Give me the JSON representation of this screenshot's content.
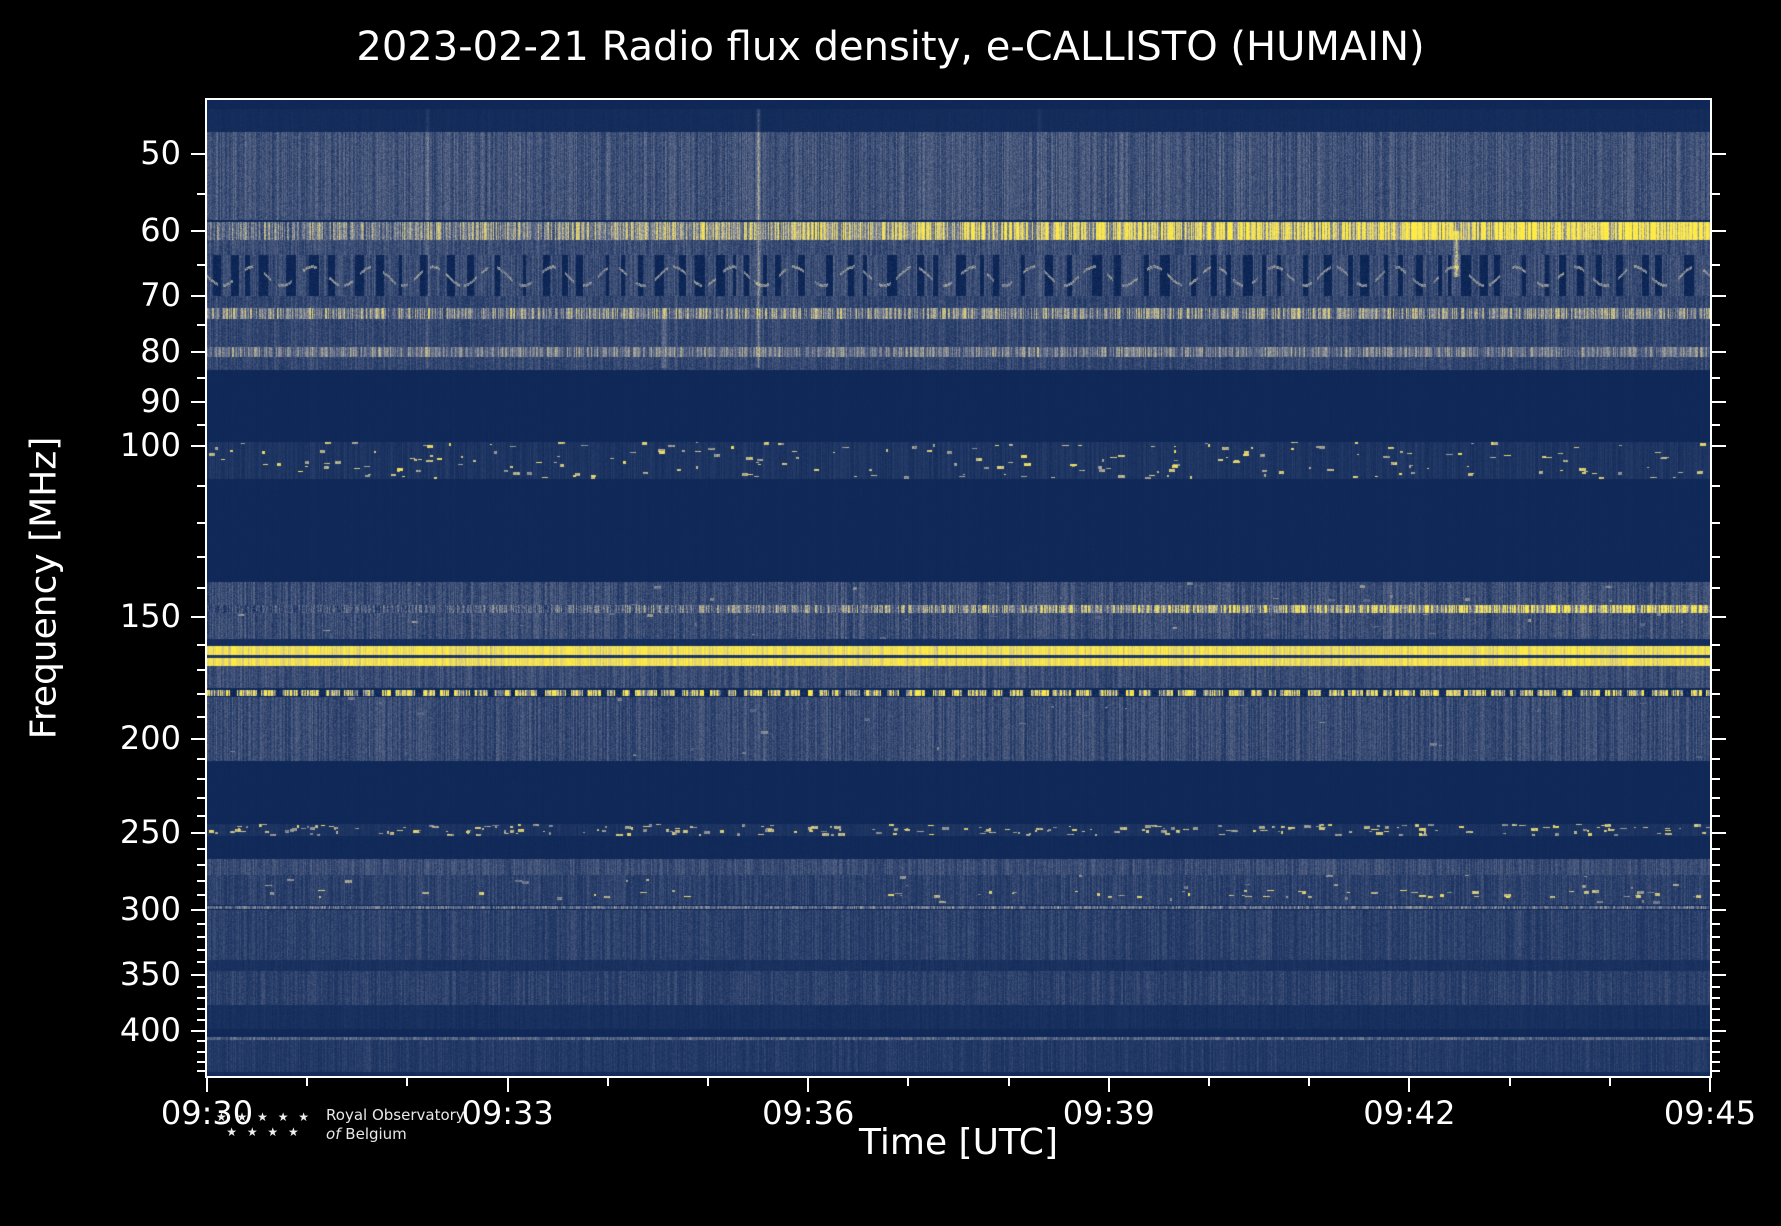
{
  "title": "2023-02-21 Radio flux density, e-CALLISTO (HUMAIN)",
  "chart_data": {
    "type": "heatmap",
    "title": "2023-02-21 Radio flux density, e-CALLISTO (HUMAIN)",
    "date": "2023-02-21",
    "instrument": "e-CALLISTO",
    "station": "HUMAIN",
    "xlabel": "Time [UTC]",
    "ylabel": "Frequency [MHz]",
    "x_span_min": 15,
    "x_major_step_min": 3,
    "x_ticks": [
      "09:30",
      "09:33",
      "09:36",
      "09:39",
      "09:42",
      "09:45"
    ],
    "y_scale": "log",
    "y_axis_inverted": true,
    "y_range_mhz": [
      44,
      445
    ],
    "y_ticks": [
      50,
      60,
      70,
      80,
      90,
      100,
      150,
      200,
      250,
      300,
      350,
      400
    ],
    "y_minor_ticks": [
      55,
      65,
      75,
      85,
      95,
      110,
      120,
      130,
      140,
      160,
      170,
      180,
      190,
      210,
      220,
      230,
      240,
      260,
      270,
      280,
      290,
      310,
      320,
      330,
      340,
      360,
      370,
      380,
      390,
      410,
      420,
      430,
      440
    ],
    "value_meaning": "relative radio flux density; dark navy = low, blue-gray = noise, yellow = strong emission",
    "colormap": [
      [
        0.0,
        [
          8,
          34,
          82
        ]
      ],
      [
        0.22,
        [
          38,
          60,
          104
        ]
      ],
      [
        0.45,
        [
          96,
          108,
          138
        ]
      ],
      [
        0.62,
        [
          150,
          152,
          152
        ]
      ],
      [
        0.78,
        [
          214,
          202,
          128
        ]
      ],
      [
        1.0,
        [
          255,
          236,
          66
        ]
      ]
    ],
    "bands": [
      {
        "kind": "noise",
        "f0": 45,
        "f1": 47.5,
        "level": 0.09,
        "var": 0.04,
        "colvar": 0.1,
        "desc": "dark strip at top edge"
      },
      {
        "kind": "noise",
        "f0": 47.5,
        "f1": 58.5,
        "level": 0.33,
        "var": 0.17,
        "colvar": 0.28,
        "desc": "broadband noise 48-58 MHz"
      },
      {
        "kind": "hline",
        "f": 60,
        "halfwidth": 1.2,
        "level": 0.72,
        "var": 0.22,
        "colvar": 0.45,
        "ramp": 0.38,
        "desc": "bright carrier ~60 MHz, stronger toward 09:45"
      },
      {
        "kind": "noise",
        "f0": 61.3,
        "f1": 63.5,
        "level": 0.3,
        "var": 0.15,
        "colvar": 0.25,
        "desc": "noise below 60 MHz line"
      },
      {
        "kind": "wavy",
        "f0": 63.5,
        "f1": 70,
        "level": 0.3,
        "var": 0.15,
        "colvar": 0.25,
        "wave_level": 0.55,
        "period_min": 0.6,
        "amp_mhz": 1.5,
        "dash": 0.62,
        "desc": "undulating dashed interference 64-70 MHz"
      },
      {
        "kind": "noise",
        "f0": 70,
        "f1": 83.5,
        "level": 0.27,
        "var": 0.14,
        "colvar": 0.25,
        "desc": "noise 70-83 MHz"
      },
      {
        "kind": "hline",
        "f": 73,
        "halfwidth": 0.9,
        "level": 0.52,
        "var": 0.2,
        "colvar": 0.5,
        "desc": "pale yellowish line ~73 MHz"
      },
      {
        "kind": "hline",
        "f": 80,
        "halfwidth": 0.8,
        "level": 0.48,
        "var": 0.16,
        "colvar": 0.4,
        "desc": "gray line ~80 MHz"
      },
      {
        "kind": "noise",
        "f0": 83.5,
        "f1": 99,
        "level": 0.06,
        "var": 0.02,
        "colvar": 0,
        "desc": "blanked band 84-99 MHz"
      },
      {
        "kind": "speckle",
        "f0": 99,
        "f1": 108,
        "level": 0.16,
        "var": 0.07,
        "colvar": 0.3,
        "speck_density": 14,
        "speck_level": 0.85,
        "desc": "FM broadcast speckles 99-108 MHz"
      },
      {
        "kind": "noise",
        "f0": 108,
        "f1": 138,
        "level": 0.06,
        "var": 0.02,
        "colvar": 0,
        "desc": "blanked band 108-138 MHz"
      },
      {
        "kind": "noise",
        "f0": 138,
        "f1": 158,
        "level": 0.3,
        "var": 0.16,
        "colvar": 0.3,
        "speck_density": 3,
        "speck_level": 0.6,
        "desc": "noise band 138-158 MHz"
      },
      {
        "kind": "hline",
        "f": 147,
        "halfwidth": 1.3,
        "level": 0.55,
        "var": 0.25,
        "colvar": 0.5,
        "ramp": 0.5,
        "desc": "line ~147 MHz brightening after 09:40"
      },
      {
        "kind": "noise",
        "f0": 158,
        "f1": 160.5,
        "level": 0.1,
        "var": 0.05,
        "colvar": 0.1,
        "desc": "dark gap 158-160 MHz"
      },
      {
        "kind": "noise",
        "f0": 160.5,
        "f1": 168.5,
        "level": 0.92,
        "var": 0.1,
        "colvar": 0.12,
        "desc": "strong continuous yellow emission 161-168 MHz"
      },
      {
        "kind": "hline",
        "f": 164.5,
        "halfwidth": 0.35,
        "level": 0.18,
        "var": 0.06,
        "colvar": 0.1,
        "desc": "dark lane inside bright band"
      },
      {
        "kind": "noise",
        "f0": 168.5,
        "f1": 177.5,
        "level": 0.3,
        "var": 0.14,
        "colvar": 0.25,
        "desc": "noise 169-177 MHz"
      },
      {
        "kind": "hline",
        "f": 179.5,
        "halfwidth": 1.0,
        "level": 0.72,
        "var": 0.25,
        "colvar": 0.55,
        "dash": 0.45,
        "desc": "dashed yellow line ~180 MHz"
      },
      {
        "kind": "noise",
        "f0": 181,
        "f1": 211,
        "level": 0.29,
        "var": 0.15,
        "colvar": 0.3,
        "speck_density": 2,
        "speck_level": 0.55,
        "desc": "noise 181-211 MHz"
      },
      {
        "kind": "noise",
        "f0": 211,
        "f1": 243,
        "level": 0.06,
        "var": 0.02,
        "colvar": 0,
        "desc": "blanked band 211-243 MHz"
      },
      {
        "kind": "speckle",
        "f0": 245,
        "f1": 252,
        "level": 0.15,
        "var": 0.07,
        "colvar": 0.2,
        "speck_density": 16,
        "speck_level": 0.8,
        "desc": "speckled channel ~248 MHz"
      },
      {
        "kind": "noise",
        "f0": 252,
        "f1": 266,
        "level": 0.07,
        "var": 0.03,
        "colvar": 0,
        "desc": "dark 252-266 MHz"
      },
      {
        "kind": "noise",
        "f0": 266,
        "f1": 276,
        "level": 0.3,
        "var": 0.13,
        "colvar": 0.25,
        "desc": "gray noise band 266-276 MHz"
      },
      {
        "kind": "noise",
        "f0": 276,
        "f1": 297,
        "level": 0.24,
        "var": 0.12,
        "colvar": 0.25,
        "speck_density": 2,
        "speck_level": 0.65,
        "desc": "noise 276-297 MHz"
      },
      {
        "kind": "speckle",
        "f0": 286,
        "f1": 292,
        "level": 0,
        "var": 0,
        "colvar": 0,
        "speck_density": 4,
        "speck_level": 0.85,
        "x_bias": 0.55,
        "desc": "yellow bursts ~289 MHz, mostly later in interval"
      },
      {
        "kind": "hline",
        "f": 298.5,
        "halfwidth": 0.8,
        "level": 0.44,
        "var": 0.15,
        "colvar": 0.4,
        "desc": "pale line ~298 MHz"
      },
      {
        "kind": "noise",
        "f0": 300,
        "f1": 338,
        "level": 0.24,
        "var": 0.12,
        "colvar": 0.25,
        "desc": "noise 300-338 MHz"
      },
      {
        "kind": "noise",
        "f0": 338,
        "f1": 347,
        "level": 0.13,
        "var": 0.06,
        "colvar": 0.2,
        "desc": "darker band 338-347 MHz"
      },
      {
        "kind": "noise",
        "f0": 347,
        "f1": 376,
        "level": 0.24,
        "var": 0.12,
        "colvar": 0.25,
        "desc": "noise 347-376 MHz"
      },
      {
        "kind": "noise",
        "f0": 376,
        "f1": 398,
        "level": 0.12,
        "var": 0.06,
        "colvar": 0.2,
        "desc": "darker band 376-398 MHz"
      },
      {
        "kind": "noise",
        "f0": 398,
        "f1": 404,
        "level": 0.07,
        "var": 0.03,
        "colvar": 0,
        "desc": "dark gap ~400 MHz"
      },
      {
        "kind": "hline",
        "f": 407,
        "halfwidth": 0.9,
        "level": 0.4,
        "var": 0.12,
        "colvar": 0.3,
        "desc": "pale line ~407 MHz"
      },
      {
        "kind": "noise",
        "f0": 409,
        "f1": 441,
        "level": 0.2,
        "var": 0.1,
        "colvar": 0.25,
        "desc": "noise 409-441 MHz"
      },
      {
        "kind": "noise",
        "f0": 441,
        "f1": 445,
        "level": 0.09,
        "var": 0.04,
        "colvar": 0.1,
        "desc": "dark bottom edge"
      }
    ],
    "streaks": [
      {
        "t": 5.5,
        "f0": 45,
        "f1": 83,
        "boost": 0.3,
        "w": 2,
        "desc": "vertical burst ~09:35:30 in low band"
      },
      {
        "t": 2.2,
        "f0": 45,
        "f1": 83,
        "boost": 0.15,
        "w": 2,
        "desc": "faint vertical streak ~09:32"
      },
      {
        "t": 8.3,
        "f0": 45,
        "f1": 83,
        "boost": 0.12,
        "w": 2,
        "desc": "faint vertical streak ~09:38"
      },
      {
        "t": 12.47,
        "f0": 60,
        "f1": 67,
        "boost": 0.55,
        "w": 3,
        "desc": "bright blob ~09:42:30 near 63 MHz"
      },
      {
        "t": 4.55,
        "f0": 74,
        "f1": 83,
        "boost": 0.22,
        "w": 3,
        "desc": "patch ~09:34:30 near 80 MHz"
      }
    ]
  },
  "footer": {
    "logo": {
      "stars1": "★ ★ ★ ★ ★",
      "stars2": "★ ★ ★ ★",
      "line1": "Royal Observatory",
      "line2a": "of",
      "line2b": "Belgium"
    }
  }
}
